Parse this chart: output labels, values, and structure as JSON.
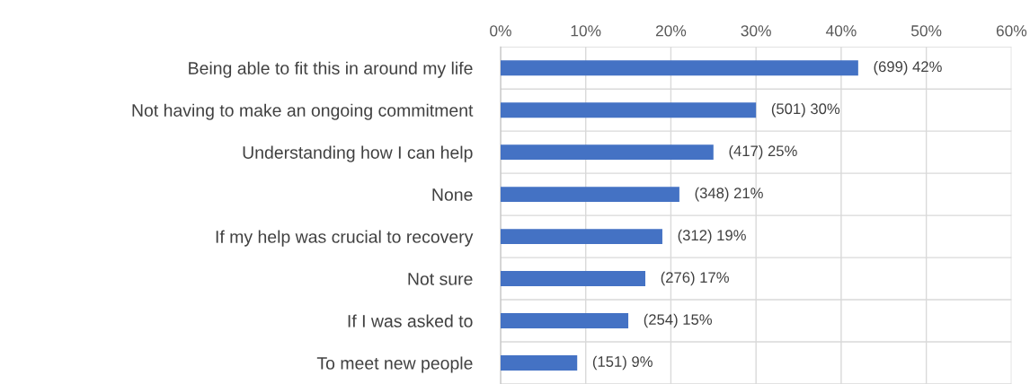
{
  "chart_data": {
    "type": "bar",
    "orientation": "horizontal",
    "categories": [
      "Being able to fit this in around my life",
      "Not having to make an ongoing commitment",
      "Understanding how I can help",
      "None",
      "If my help was crucial to recovery",
      "Not sure",
      "If I was asked to",
      "To meet new people"
    ],
    "values": [
      42,
      30,
      25,
      21,
      19,
      17,
      15,
      9
    ],
    "value_labels": [
      "(699) 42%",
      "(501) 30%",
      "(417) 25%",
      "(348) 21%",
      "(312) 19%",
      "(276) 17%",
      "(254) 15%",
      "(151) 9%"
    ],
    "color": "#4472c4",
    "xlim": [
      0,
      60
    ],
    "xticks": [
      {
        "value": 0,
        "label": "0%"
      },
      {
        "value": 10,
        "label": "10%"
      },
      {
        "value": 20,
        "label": "20%"
      },
      {
        "value": 30,
        "label": "30%"
      },
      {
        "value": 40,
        "label": "40%"
      },
      {
        "value": 50,
        "label": "50%"
      },
      {
        "value": 60,
        "label": "60%"
      }
    ],
    "grid": true,
    "legend": false
  }
}
